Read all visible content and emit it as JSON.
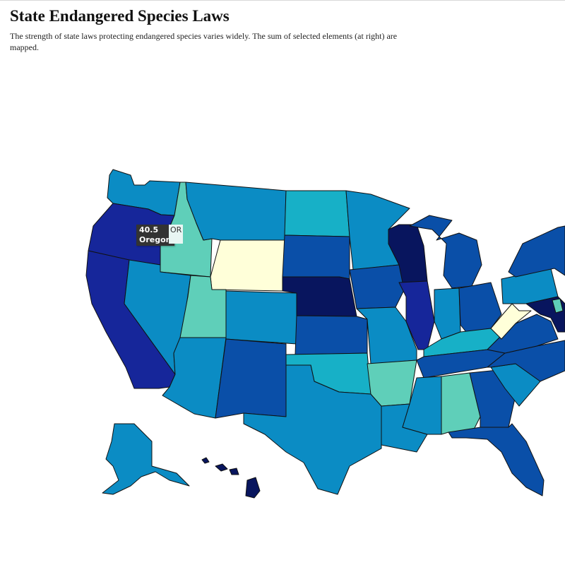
{
  "header": {
    "title": "State Endangered Species Laws",
    "description": "The strength of state laws protecting endangered species varies widely. The sum of selected elements (at right) are mapped."
  },
  "map": {
    "palette": {
      "c1": "#ffffd9",
      "c2": "#5fcfb9",
      "c3": "#17b0c7",
      "c4": "#0b8cc4",
      "c5": "#0a4fa8",
      "c6": "#16269a",
      "c7": "#08155e"
    },
    "states": [
      {
        "abbr": "WA",
        "level": "c4"
      },
      {
        "abbr": "OR",
        "level": "c6"
      },
      {
        "abbr": "CA",
        "level": "c6"
      },
      {
        "abbr": "ID",
        "level": "c2"
      },
      {
        "abbr": "NV",
        "level": "c4"
      },
      {
        "abbr": "MT",
        "level": "c4"
      },
      {
        "abbr": "WY",
        "level": "c1"
      },
      {
        "abbr": "UT",
        "level": "c2"
      },
      {
        "abbr": "AZ",
        "level": "c4"
      },
      {
        "abbr": "CO",
        "level": "c4"
      },
      {
        "abbr": "NM",
        "level": "c5"
      },
      {
        "abbr": "ND",
        "level": "c3"
      },
      {
        "abbr": "SD",
        "level": "c5"
      },
      {
        "abbr": "NE",
        "level": "c7"
      },
      {
        "abbr": "KS",
        "level": "c5"
      },
      {
        "abbr": "OK",
        "level": "c3"
      },
      {
        "abbr": "TX",
        "level": "c4"
      },
      {
        "abbr": "MN",
        "level": "c4"
      },
      {
        "abbr": "IA",
        "level": "c5"
      },
      {
        "abbr": "MO",
        "level": "c4"
      },
      {
        "abbr": "AR",
        "level": "c2"
      },
      {
        "abbr": "LA",
        "level": "c4"
      },
      {
        "abbr": "WI",
        "level": "c7"
      },
      {
        "abbr": "IL",
        "level": "c6"
      },
      {
        "abbr": "MI",
        "level": "c5"
      },
      {
        "abbr": "IN",
        "level": "c4"
      },
      {
        "abbr": "OH",
        "level": "c5"
      },
      {
        "abbr": "KY",
        "level": "c3"
      },
      {
        "abbr": "TN",
        "level": "c5"
      },
      {
        "abbr": "MS",
        "level": "c4"
      },
      {
        "abbr": "AL",
        "level": "c2"
      },
      {
        "abbr": "GA",
        "level": "c5"
      },
      {
        "abbr": "FL",
        "level": "c5"
      },
      {
        "abbr": "SC",
        "level": "c4"
      },
      {
        "abbr": "NC",
        "level": "c5"
      },
      {
        "abbr": "VA",
        "level": "c5"
      },
      {
        "abbr": "WV",
        "level": "c1"
      },
      {
        "abbr": "PA",
        "level": "c4"
      },
      {
        "abbr": "NY",
        "level": "c5"
      },
      {
        "abbr": "MD",
        "level": "c7"
      },
      {
        "abbr": "DE",
        "level": "c2"
      },
      {
        "abbr": "AK",
        "level": "c4"
      },
      {
        "abbr": "HI",
        "level": "c7"
      }
    ],
    "tooltip": {
      "value": "40.5",
      "state": "Oregon",
      "abbr": "OR"
    }
  }
}
